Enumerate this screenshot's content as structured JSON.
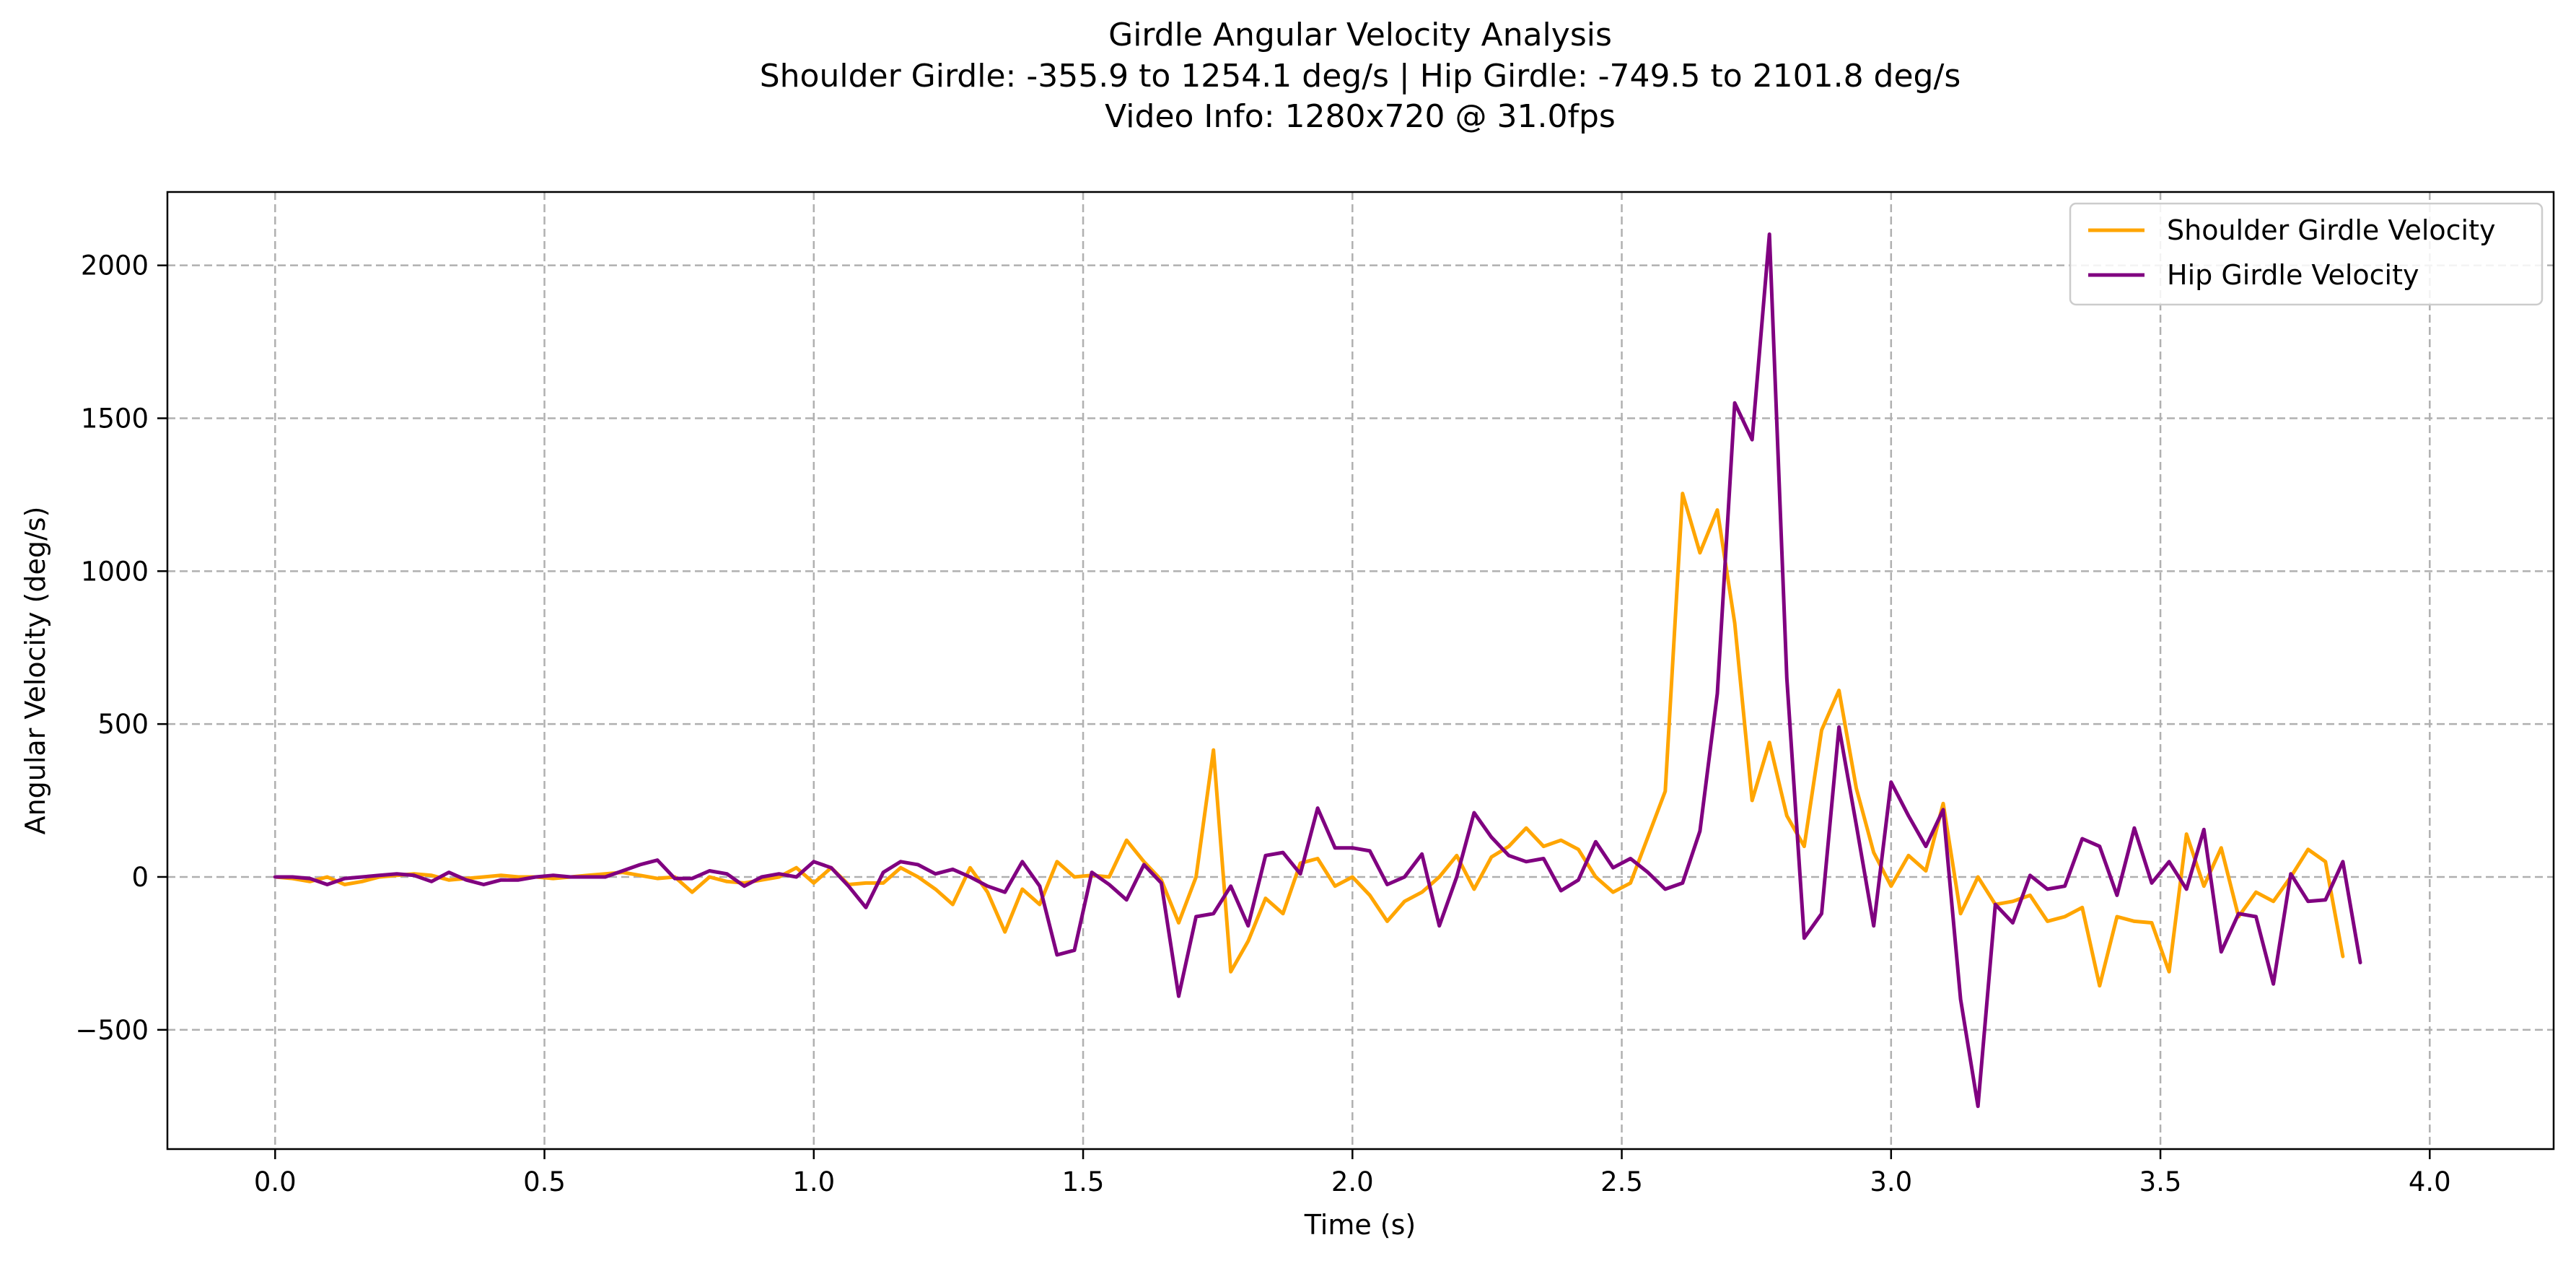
{
  "chart_data": {
    "type": "line",
    "title": "Girdle Angular Velocity Analysis",
    "subtitle_lines": [
      "Shoulder Girdle: -355.9 to 1254.1 deg/s | Hip Girdle: -749.5 to 2101.8 deg/s",
      "Video Info: 1280x720 @ 31.0fps"
    ],
    "xlabel": "Time (s)",
    "ylabel": "Angular Velocity (deg/s)",
    "xlim": [
      -0.2,
      4.23
    ],
    "ylim": [
      -890,
      2240
    ],
    "x_ticks": [
      0.0,
      0.5,
      1.0,
      1.5,
      2.0,
      2.5,
      3.0,
      3.5,
      4.0
    ],
    "x_tick_labels": [
      "0.0",
      "0.5",
      "1.0",
      "1.5",
      "2.0",
      "2.5",
      "3.0",
      "3.5",
      "4.0"
    ],
    "y_ticks": [
      -500,
      0,
      500,
      1000,
      1500,
      2000
    ],
    "y_tick_labels": [
      "−500",
      "0",
      "500",
      "1000",
      "1500",
      "2000"
    ],
    "grid": true,
    "legend_position": "top-right",
    "sample_rate_fps": 31.0,
    "series": [
      {
        "name": "Shoulder Girdle Velocity",
        "color": "#FFA500",
        "values": [
          0,
          -5,
          -15,
          0,
          -25,
          -15,
          0,
          5,
          10,
          5,
          -10,
          -5,
          0,
          5,
          0,
          0,
          -5,
          0,
          5,
          10,
          15,
          5,
          -5,
          0,
          -50,
          0,
          -15,
          -20,
          -10,
          0,
          30,
          -20,
          30,
          -25,
          -20,
          -20,
          30,
          0,
          -40,
          -90,
          30,
          -50,
          -180,
          -40,
          -90,
          50,
          0,
          5,
          0,
          120,
          50,
          -10,
          -150,
          0,
          415,
          -310,
          -210,
          -70,
          -120,
          45,
          60,
          -30,
          0,
          -60,
          -145,
          -80,
          -50,
          0,
          70,
          -40,
          65,
          100,
          160,
          100,
          120,
          90,
          0,
          -50,
          -20,
          130,
          280,
          1254,
          1060,
          1200,
          830,
          250,
          440,
          200,
          100,
          480,
          610,
          290,
          80,
          -30,
          70,
          20,
          240,
          -120,
          0,
          -90,
          -80,
          -60,
          -145,
          -130,
          -100,
          -356,
          -130,
          -145,
          -150,
          -310,
          140,
          -30,
          95,
          -130,
          -50,
          -80,
          0,
          90,
          50,
          -260
        ]
      },
      {
        "name": "Hip Girdle Velocity",
        "color": "#800080",
        "values": [
          0,
          0,
          -5,
          -25,
          -5,
          0,
          5,
          10,
          5,
          -15,
          15,
          -10,
          -25,
          -10,
          -10,
          0,
          5,
          0,
          0,
          0,
          20,
          40,
          55,
          -5,
          -5,
          20,
          10,
          -30,
          0,
          10,
          0,
          50,
          30,
          -30,
          -100,
          15,
          50,
          40,
          10,
          25,
          0,
          -30,
          -50,
          50,
          -30,
          -255,
          -240,
          15,
          -25,
          -75,
          40,
          -20,
          -390,
          -130,
          -120,
          -30,
          -160,
          70,
          80,
          10,
          225,
          95,
          95,
          85,
          -25,
          0,
          75,
          -160,
          0,
          210,
          130,
          70,
          50,
          60,
          -45,
          -10,
          115,
          30,
          60,
          15,
          -40,
          -20,
          150,
          600,
          1550,
          1430,
          2102,
          650,
          -200,
          -120,
          490,
          170,
          -160,
          310,
          200,
          100,
          220,
          -400,
          -750,
          -90,
          -150,
          5,
          -40,
          -30,
          125,
          100,
          -60,
          160,
          -20,
          50,
          -40,
          155,
          -245,
          -120,
          -130,
          -350,
          10,
          -80,
          -75,
          50,
          -280
        ]
      }
    ]
  }
}
